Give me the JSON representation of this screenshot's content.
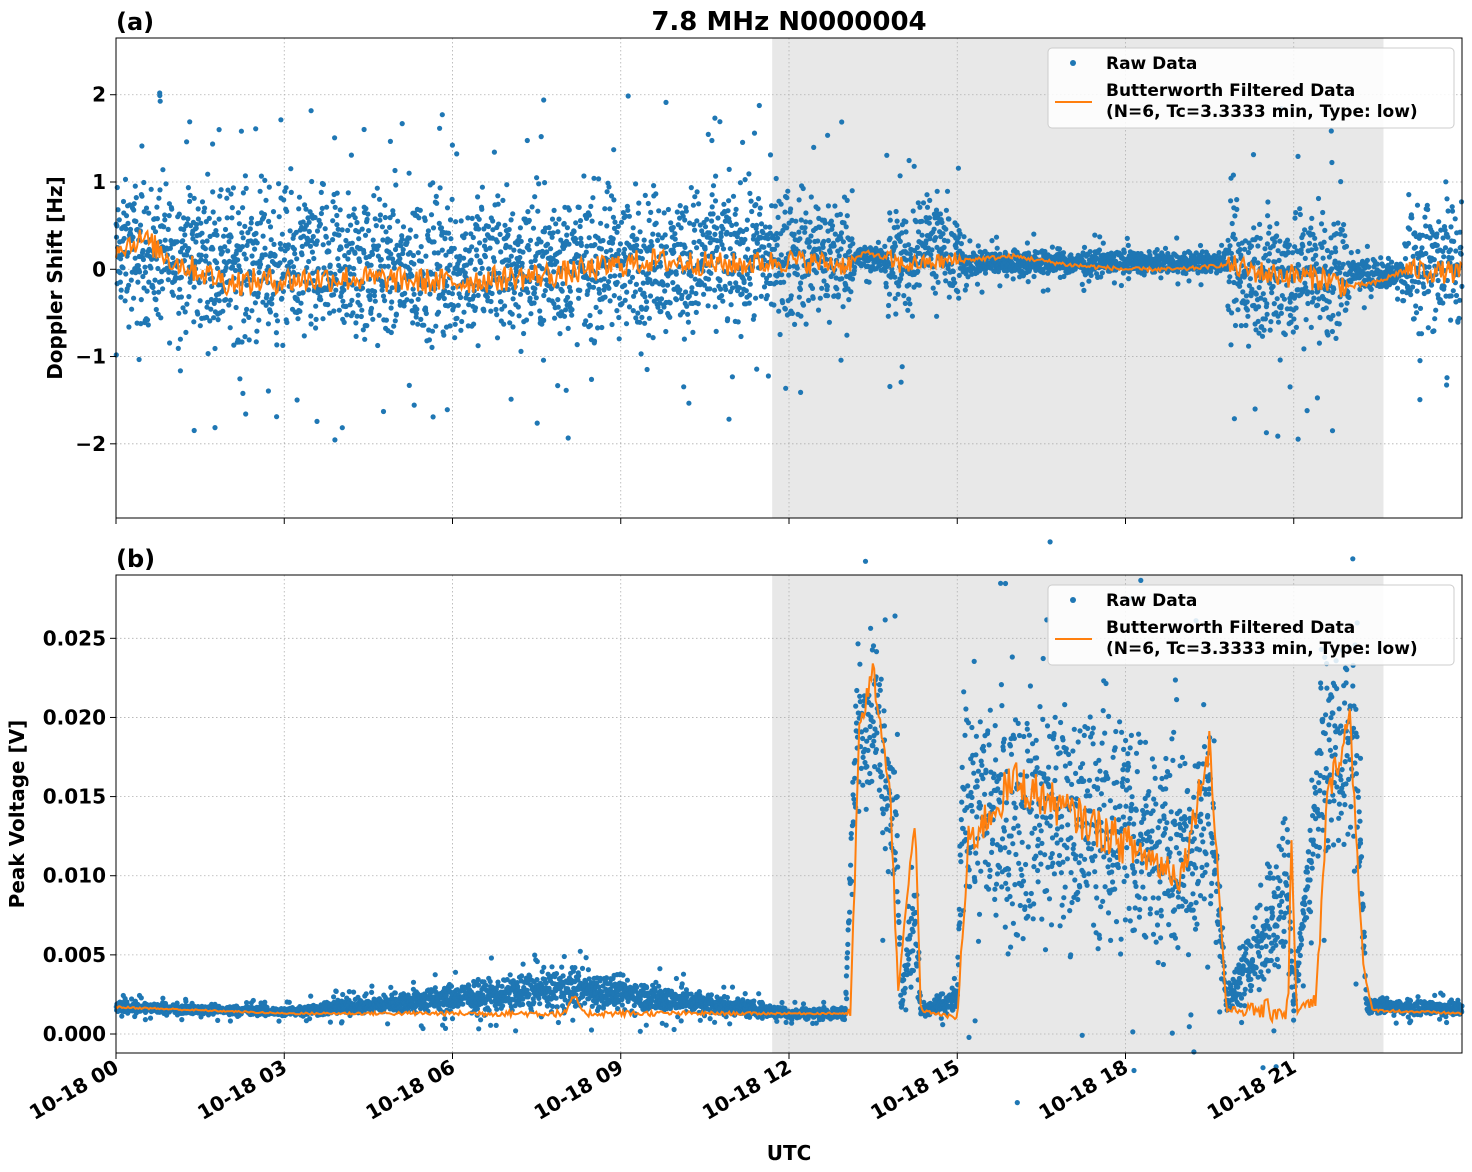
{
  "title": "7.8 MHz N0000004",
  "xlabel": "UTC",
  "x_tick_labels": [
    "10-18 00",
    "10-18 03",
    "10-18 06",
    "10-18 09",
    "10-18 12",
    "10-18 15",
    "10-18 18",
    "10-18 21"
  ],
  "colors": {
    "raw": "#1f77b4",
    "filtered": "#ff7f0e",
    "shade": "#e8e8e8",
    "grid": "#b0b0b0"
  },
  "legend": {
    "raw_label": "Raw Data",
    "filtered_label_line1": "Butterworth Filtered Data",
    "filtered_label_line2": "(N=6, Tc=3.3333 min, Type: low)",
    "placement": "upper right"
  },
  "chart_data": [
    {
      "type": "scatter",
      "panel_label": "(a)",
      "ylabel": "Doppler Shift [Hz]",
      "x_unit": "hours UTC on 10-18",
      "xlim": [
        0,
        24
      ],
      "ylim": [
        -2.85,
        2.65
      ],
      "y_ticks": [
        -2,
        -1,
        0,
        1,
        2
      ],
      "y_tick_labels": [
        "−2",
        "−1",
        "0",
        "1",
        "2"
      ],
      "grid": true,
      "shaded_interval": [
        11.7,
        22.6
      ],
      "series": [
        {
          "name": "Raw Data",
          "kind": "points"
        },
        {
          "name": "Butterworth Filtered Data (N=6, Tc=3.3333 min, Type: low)",
          "kind": "line"
        }
      ],
      "raw_envelope": [
        {
          "t": 0.0,
          "lo": -0.9,
          "hi": 1.3
        },
        {
          "t": 1.0,
          "lo": -1.1,
          "hi": 1.4
        },
        {
          "t": 4.0,
          "lo": -1.3,
          "hi": 1.3
        },
        {
          "t": 8.0,
          "lo": -1.2,
          "hi": 1.3
        },
        {
          "t": 11.5,
          "lo": -1.0,
          "hi": 1.3
        },
        {
          "t": 13.1,
          "lo": -0.9,
          "hi": 1.2
        },
        {
          "t": 13.15,
          "lo": -0.1,
          "hi": 0.35
        },
        {
          "t": 13.7,
          "lo": -0.1,
          "hi": 0.35
        },
        {
          "t": 13.75,
          "lo": -0.9,
          "hi": 1.0
        },
        {
          "t": 14.2,
          "lo": -0.9,
          "hi": 1.0
        },
        {
          "t": 14.3,
          "lo": -0.3,
          "hi": 1.1
        },
        {
          "t": 15.0,
          "lo": -0.8,
          "hi": 1.0
        },
        {
          "t": 15.1,
          "lo": -0.15,
          "hi": 0.3
        },
        {
          "t": 19.8,
          "lo": -0.1,
          "hi": 0.25
        },
        {
          "t": 19.85,
          "lo": -1.2,
          "hi": 1.0
        },
        {
          "t": 21.9,
          "lo": -1.3,
          "hi": 1.3
        },
        {
          "t": 22.0,
          "lo": -0.3,
          "hi": 0.2
        },
        {
          "t": 22.9,
          "lo": -0.3,
          "hi": 0.2
        },
        {
          "t": 23.0,
          "lo": -1.0,
          "hi": 1.2
        },
        {
          "t": 24.0,
          "lo": -1.0,
          "hi": 1.2
        }
      ],
      "filtered_trend": [
        {
          "t": 0.0,
          "y": 0.25
        },
        {
          "t": 0.5,
          "y": 0.35
        },
        {
          "t": 1.0,
          "y": 0.1
        },
        {
          "t": 2.0,
          "y": -0.15
        },
        {
          "t": 4.0,
          "y": -0.1
        },
        {
          "t": 6.0,
          "y": -0.15
        },
        {
          "t": 8.0,
          "y": -0.05
        },
        {
          "t": 9.5,
          "y": 0.1
        },
        {
          "t": 11.0,
          "y": 0.05
        },
        {
          "t": 12.0,
          "y": 0.1
        },
        {
          "t": 13.0,
          "y": 0.05
        },
        {
          "t": 13.4,
          "y": 0.2
        },
        {
          "t": 14.0,
          "y": 0.05
        },
        {
          "t": 15.0,
          "y": 0.1
        },
        {
          "t": 16.0,
          "y": 0.15
        },
        {
          "t": 17.0,
          "y": 0.05
        },
        {
          "t": 18.0,
          "y": 0.0
        },
        {
          "t": 19.0,
          "y": 0.0
        },
        {
          "t": 19.8,
          "y": 0.05
        },
        {
          "t": 20.5,
          "y": -0.05
        },
        {
          "t": 21.5,
          "y": -0.1
        },
        {
          "t": 22.0,
          "y": -0.2
        },
        {
          "t": 22.5,
          "y": -0.15
        },
        {
          "t": 23.0,
          "y": 0.0
        },
        {
          "t": 24.0,
          "y": -0.05
        }
      ]
    },
    {
      "type": "scatter",
      "panel_label": "(b)",
      "ylabel": "Peak Voltage [V]",
      "x_unit": "hours UTC on 10-18",
      "xlim": [
        0,
        24
      ],
      "ylim": [
        -0.0012,
        0.029
      ],
      "y_ticks": [
        0.0,
        0.005,
        0.01,
        0.015,
        0.02,
        0.025
      ],
      "y_tick_labels": [
        "0.000",
        "0.005",
        "0.010",
        "0.015",
        "0.020",
        "0.025"
      ],
      "grid": true,
      "shaded_interval": [
        11.7,
        22.6
      ],
      "series": [
        {
          "name": "Raw Data",
          "kind": "points"
        },
        {
          "name": "Butterworth Filtered Data (N=6, Tc=3.3333 min, Type: low)",
          "kind": "line"
        }
      ],
      "raw_envelope": [
        {
          "t": 0.0,
          "lo": 0.0012,
          "hi": 0.0022
        },
        {
          "t": 3.0,
          "lo": 0.001,
          "hi": 0.0018
        },
        {
          "t": 8.2,
          "lo": 0.001,
          "hi": 0.0048
        },
        {
          "t": 12.0,
          "lo": 0.0008,
          "hi": 0.0018
        },
        {
          "t": 13.0,
          "lo": 0.0008,
          "hi": 0.0018
        },
        {
          "t": 13.2,
          "lo": 0.012,
          "hi": 0.026
        },
        {
          "t": 13.5,
          "lo": 0.014,
          "hi": 0.0275
        },
        {
          "t": 13.9,
          "lo": 0.005,
          "hi": 0.022
        },
        {
          "t": 14.0,
          "lo": 0.0008,
          "hi": 0.003
        },
        {
          "t": 14.25,
          "lo": 0.001,
          "hi": 0.015
        },
        {
          "t": 14.35,
          "lo": 0.0008,
          "hi": 0.002
        },
        {
          "t": 15.0,
          "lo": 0.001,
          "hi": 0.0035
        },
        {
          "t": 15.1,
          "lo": 0.005,
          "hi": 0.024
        },
        {
          "t": 16.0,
          "lo": 0.002,
          "hi": 0.026
        },
        {
          "t": 17.0,
          "lo": 0.003,
          "hi": 0.024
        },
        {
          "t": 18.0,
          "lo": 0.002,
          "hi": 0.025
        },
        {
          "t": 19.0,
          "lo": 0.002,
          "hi": 0.02
        },
        {
          "t": 19.5,
          "lo": 0.005,
          "hi": 0.0235
        },
        {
          "t": 19.8,
          "lo": 0.001,
          "hi": 0.003
        },
        {
          "t": 20.9,
          "lo": 0.001,
          "hi": 0.0175
        },
        {
          "t": 21.0,
          "lo": 0.001,
          "hi": 0.003
        },
        {
          "t": 21.5,
          "lo": 0.01,
          "hi": 0.0255
        },
        {
          "t": 22.1,
          "lo": 0.008,
          "hi": 0.027
        },
        {
          "t": 22.3,
          "lo": 0.001,
          "hi": 0.0025
        },
        {
          "t": 24.0,
          "lo": 0.001,
          "hi": 0.0022
        }
      ],
      "filtered_trend": [
        {
          "t": 0.0,
          "y": 0.0017
        },
        {
          "t": 3.0,
          "y": 0.0013
        },
        {
          "t": 8.0,
          "y": 0.0013
        },
        {
          "t": 8.2,
          "y": 0.0025
        },
        {
          "t": 8.3,
          "y": 0.0013
        },
        {
          "t": 12.0,
          "y": 0.0013
        },
        {
          "t": 13.1,
          "y": 0.0013
        },
        {
          "t": 13.25,
          "y": 0.019
        },
        {
          "t": 13.5,
          "y": 0.023
        },
        {
          "t": 13.8,
          "y": 0.015
        },
        {
          "t": 13.95,
          "y": 0.003
        },
        {
          "t": 14.25,
          "y": 0.0135
        },
        {
          "t": 14.35,
          "y": 0.0015
        },
        {
          "t": 15.0,
          "y": 0.001
        },
        {
          "t": 15.2,
          "y": 0.012
        },
        {
          "t": 16.0,
          "y": 0.016
        },
        {
          "t": 17.0,
          "y": 0.014
        },
        {
          "t": 18.0,
          "y": 0.012
        },
        {
          "t": 19.0,
          "y": 0.01
        },
        {
          "t": 19.5,
          "y": 0.0185
        },
        {
          "t": 19.8,
          "y": 0.0015
        },
        {
          "t": 20.9,
          "y": 0.0015
        },
        {
          "t": 20.95,
          "y": 0.013
        },
        {
          "t": 21.05,
          "y": 0.0015
        },
        {
          "t": 21.4,
          "y": 0.002
        },
        {
          "t": 21.6,
          "y": 0.015
        },
        {
          "t": 22.0,
          "y": 0.02
        },
        {
          "t": 22.25,
          "y": 0.004
        },
        {
          "t": 22.4,
          "y": 0.0015
        },
        {
          "t": 24.0,
          "y": 0.0013
        }
      ]
    }
  ]
}
